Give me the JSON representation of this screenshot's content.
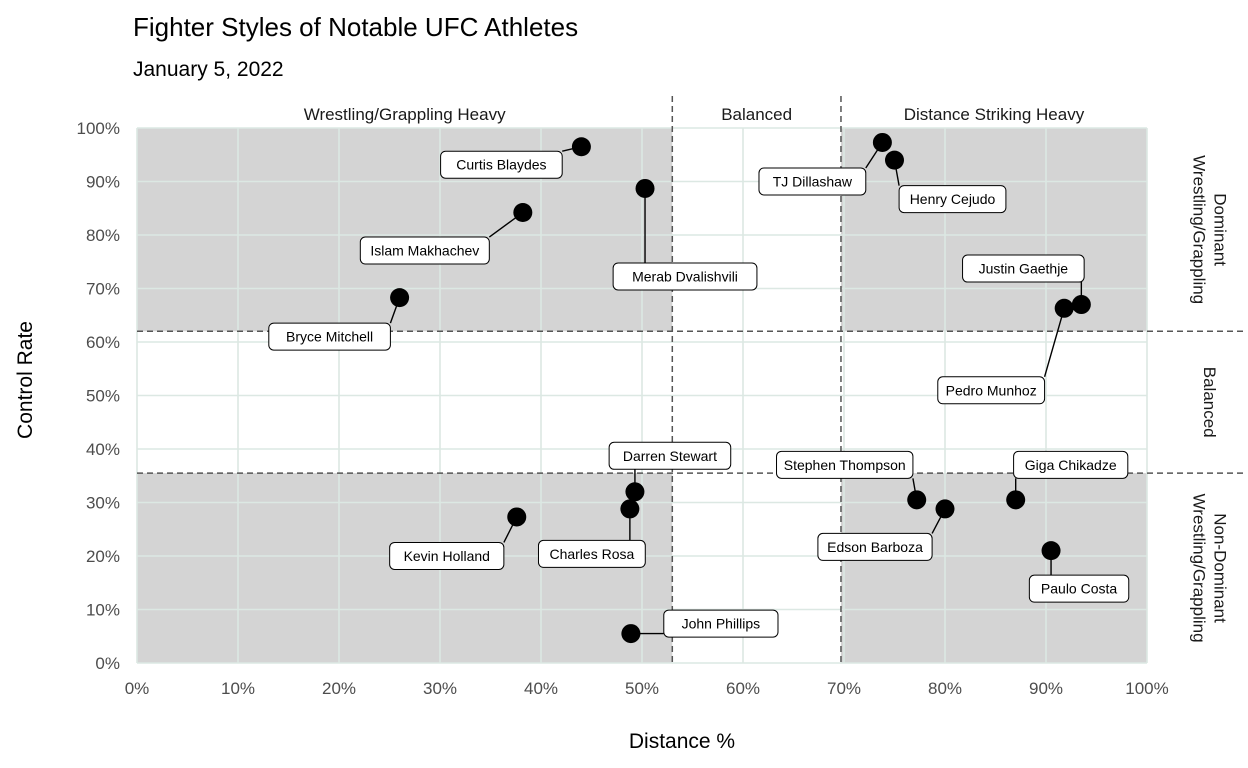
{
  "chart_data": {
    "type": "scatter",
    "title": "Fighter Styles of Notable UFC Athletes",
    "subtitle": "January 5, 2022",
    "xlabel": "Distance %",
    "ylabel": "Control Rate",
    "xlim": [
      0,
      1
    ],
    "ylim": [
      0,
      1
    ],
    "x_ticks": [
      "0%",
      "10%",
      "20%",
      "30%",
      "40%",
      "50%",
      "60%",
      "70%",
      "80%",
      "90%",
      "100%"
    ],
    "y_ticks": [
      "0%",
      "10%",
      "20%",
      "30%",
      "40%",
      "50%",
      "60%",
      "70%",
      "80%",
      "90%",
      "100%"
    ],
    "x_thresholds": [
      0.53,
      0.697
    ],
    "y_thresholds": [
      0.355,
      0.62
    ],
    "column_headers": [
      "Wrestling/Grappling Heavy",
      "Balanced",
      "Distance Striking Heavy"
    ],
    "row_headers": [
      [
        "Dominant",
        "Wrestling/Grappling"
      ],
      [
        "Balanced"
      ],
      [
        "Non-Dominant",
        "Wrestling/Grappling"
      ]
    ],
    "grid": true,
    "shaded_regions": "corner quadrants",
    "points": [
      {
        "name": "Curtis Blaydes",
        "x": 0.44,
        "y": 0.965
      },
      {
        "name": "Merab Dvalishvili",
        "x": 0.503,
        "y": 0.887
      },
      {
        "name": "Islam Makhachev",
        "x": 0.382,
        "y": 0.842
      },
      {
        "name": "Bryce Mitchell",
        "x": 0.26,
        "y": 0.683
      },
      {
        "name": "TJ Dillashaw",
        "x": 0.738,
        "y": 0.973
      },
      {
        "name": "Henry Cejudo",
        "x": 0.75,
        "y": 0.94
      },
      {
        "name": "Justin Gaethje",
        "x": 0.935,
        "y": 0.67
      },
      {
        "name": "Pedro Munhoz",
        "x": 0.918,
        "y": 0.663
      },
      {
        "name": "Darren Stewart",
        "x": 0.493,
        "y": 0.32
      },
      {
        "name": "Charles Rosa",
        "x": 0.488,
        "y": 0.288
      },
      {
        "name": "Kevin Holland",
        "x": 0.376,
        "y": 0.273
      },
      {
        "name": "John Phillips",
        "x": 0.489,
        "y": 0.055
      },
      {
        "name": "Stephen Thompson",
        "x": 0.772,
        "y": 0.305
      },
      {
        "name": "Edson Barboza",
        "x": 0.8,
        "y": 0.288
      },
      {
        "name": "Giga Chikadze",
        "x": 0.87,
        "y": 0.305
      },
      {
        "name": "Paulo Costa",
        "x": 0.905,
        "y": 0.21
      }
    ],
    "colors": {
      "shade": "#d4d4d4",
      "grid": "#dce8e3",
      "point": "#000000",
      "threshold": "#555555"
    }
  }
}
